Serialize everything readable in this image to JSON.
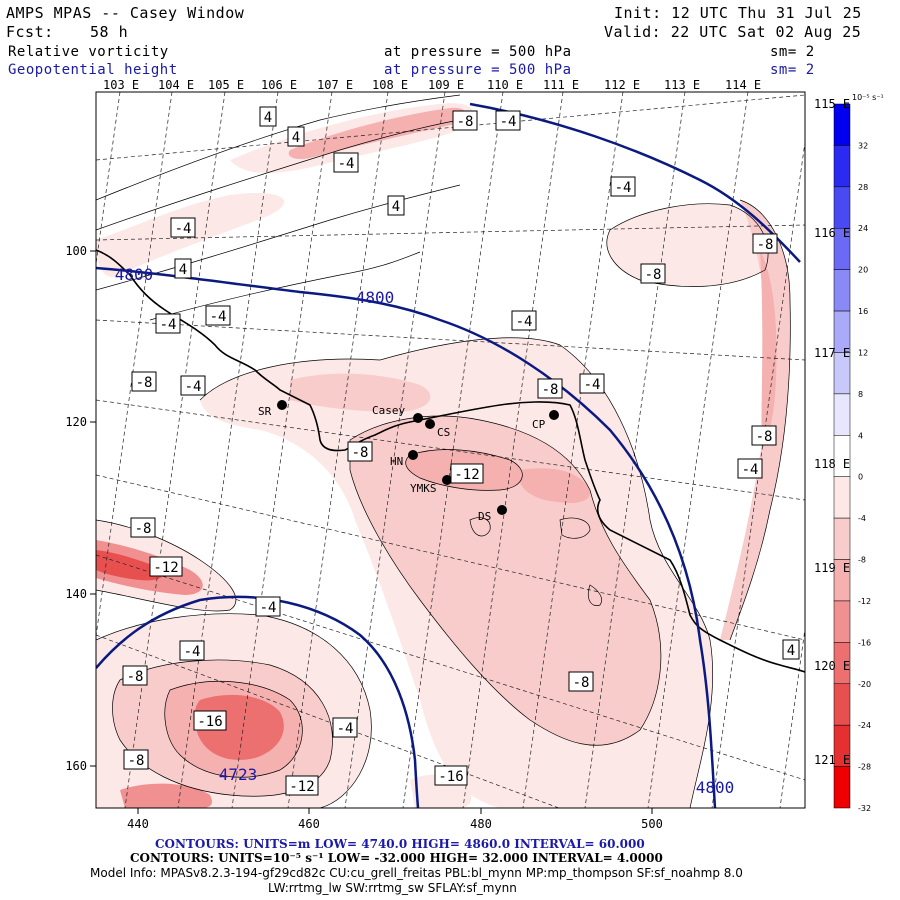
{
  "header": {
    "model_title": "AMPS MPAS -- Casey Window",
    "init_text": "Init: 12 UTC Thu 31 Jul 25",
    "fcst_label": "Fcst:",
    "fcst_value": "58 h",
    "valid_text": "Valid: 22 UTC Sat 02 Aug 25",
    "field1_name": "Relative vorticity",
    "field1_level": "at pressure =  500 hPa",
    "field1_sm": "sm= 2",
    "field2_name": "Geopotential height",
    "field2_level": "at pressure =  500 hPa",
    "field2_sm": "sm= 2"
  },
  "axes": {
    "x_ticks": [
      "440",
      "460",
      "480",
      "500"
    ],
    "y_ticks": [
      "100",
      "120",
      "140",
      "160"
    ],
    "lon_top": [
      "103 E",
      "104 E",
      "105 E",
      "106 E",
      "107 E",
      "108 E",
      "109 E",
      "110 E",
      "111 E",
      "112 E",
      "113 E",
      "114 E"
    ],
    "lon_right": [
      "115 E",
      "116 E",
      "117 E",
      "118 E",
      "119 E",
      "120 E",
      "121 E"
    ]
  },
  "colorbar": {
    "unit_label": "10⁻⁵ s⁻¹",
    "levels": [
      "32",
      "28",
      "24",
      "20",
      "16",
      "12",
      "8",
      "4",
      "0",
      "-4",
      "-8",
      "-12",
      "-16",
      "-20",
      "-24",
      "-28",
      "-32"
    ],
    "colors": [
      "#0000ee",
      "#2a2af0",
      "#4a4af2",
      "#6a6af4",
      "#8a8af6",
      "#aaaaf8",
      "#c8c8fa",
      "#e6e6fd",
      "#ffffff",
      "#fde8e8",
      "#f9cccc",
      "#f5b0b0",
      "#f09090",
      "#ec7070",
      "#e85050",
      "#e43030",
      "#ee0000"
    ]
  },
  "stations": [
    {
      "code": "SR"
    },
    {
      "code": "Casey"
    },
    {
      "code": "CS"
    },
    {
      "code": "CP"
    },
    {
      "code": "HN"
    },
    {
      "code": "YMKS"
    },
    {
      "code": "DS"
    }
  ],
  "contour_labels": {
    "vorticity": [
      "4",
      "4",
      "4",
      "4",
      "-4",
      "-4",
      "-4",
      "-4",
      "-4",
      "-4",
      "-4",
      "-4",
      "-4",
      "-4",
      "-4",
      "-4",
      "-4",
      "-8",
      "-8",
      "-8",
      "-8",
      "-8",
      "-8",
      "-8",
      "-8",
      "-8",
      "-8",
      "-8",
      "-12",
      "-12",
      "-12",
      "-16",
      "-16",
      "-4"
    ],
    "height": [
      "4800",
      "4800",
      "4800",
      "4723"
    ]
  },
  "footer": {
    "contours1_label": "CONTOURS:  UNITS=m  LOW=  4740.0       HIGH=  4860.0     INTERVAL=   60.000",
    "contours2_label": "CONTOURS:  UNITS=10⁻⁵ s⁻¹  LOW= -32.000        HIGH=  32.000       INTERVAL=   4.0000",
    "model_info": "Model Info: MPASv8.2.3-194-gf29cd82c CU:cu_grell_freitas PBL:bl_mynn MP:mp_thompson SF:sf_noahmp 8.0",
    "model_info2": "LW:rrtmg_lw SW:rrtmg_sw SFLAY:sf_mynn"
  },
  "colors": {
    "height_contour": "#0a1a80",
    "coast": "#000000",
    "text_blue": "#1a1aa6"
  }
}
